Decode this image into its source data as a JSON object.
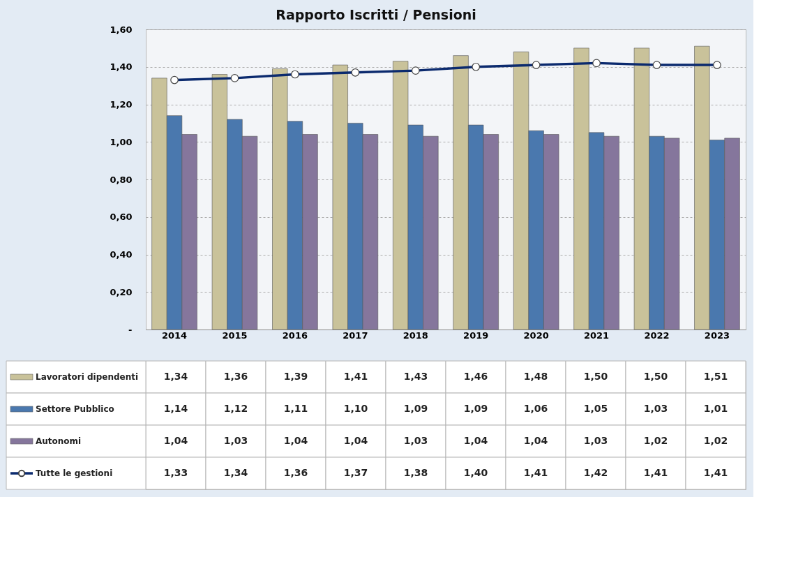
{
  "chart_data": {
    "type": "bar",
    "title": "Rapporto Iscritti / Pensioni",
    "categories": [
      "2014",
      "2015",
      "2016",
      "2017",
      "2018",
      "2019",
      "2020",
      "2021",
      "2022",
      "2023"
    ],
    "series": [
      {
        "name": "Lavoratori dipendenti",
        "color": "#c9c29a",
        "values": [
          1.34,
          1.36,
          1.39,
          1.41,
          1.43,
          1.46,
          1.48,
          1.5,
          1.5,
          1.51
        ],
        "value_labels": [
          "1,34",
          "1,36",
          "1,39",
          "1,41",
          "1,43",
          "1,46",
          "1,48",
          "1,50",
          "1,50",
          "1,51"
        ]
      },
      {
        "name": "Settore Pubblico",
        "color": "#4a78ae",
        "values": [
          1.14,
          1.12,
          1.11,
          1.1,
          1.09,
          1.09,
          1.06,
          1.05,
          1.03,
          1.01
        ],
        "value_labels": [
          "1,14",
          "1,12",
          "1,11",
          "1,10",
          "1,09",
          "1,09",
          "1,06",
          "1,05",
          "1,03",
          "1,01"
        ]
      },
      {
        "name": "Autonomi",
        "color": "#85769c",
        "values": [
          1.04,
          1.03,
          1.04,
          1.04,
          1.03,
          1.04,
          1.04,
          1.03,
          1.02,
          1.02
        ],
        "value_labels": [
          "1,04",
          "1,03",
          "1,04",
          "1,04",
          "1,03",
          "1,04",
          "1,04",
          "1,03",
          "1,02",
          "1,02"
        ]
      },
      {
        "name": "Tutte le gestioni",
        "type": "line",
        "color": "#0b2a6e",
        "values": [
          1.33,
          1.34,
          1.36,
          1.37,
          1.38,
          1.4,
          1.41,
          1.42,
          1.41,
          1.41
        ],
        "value_labels": [
          "1,33",
          "1,34",
          "1,36",
          "1,37",
          "1,38",
          "1,40",
          "1,41",
          "1,42",
          "1,41",
          "1,41"
        ]
      }
    ],
    "ylim": [
      0,
      1.6
    ],
    "yticks": [
      {
        "value": 0,
        "label": "-"
      },
      {
        "value": 0.2,
        "label": "0,20"
      },
      {
        "value": 0.4,
        "label": "0,40"
      },
      {
        "value": 0.6,
        "label": "0,60"
      },
      {
        "value": 0.8,
        "label": "0,80"
      },
      {
        "value": 1.0,
        "label": "1,00"
      },
      {
        "value": 1.2,
        "label": "1,20"
      },
      {
        "value": 1.4,
        "label": "1,40"
      },
      {
        "value": 1.6,
        "label": "1,60"
      }
    ],
    "grid": "y",
    "marker": "circle",
    "legend": "bottom"
  }
}
